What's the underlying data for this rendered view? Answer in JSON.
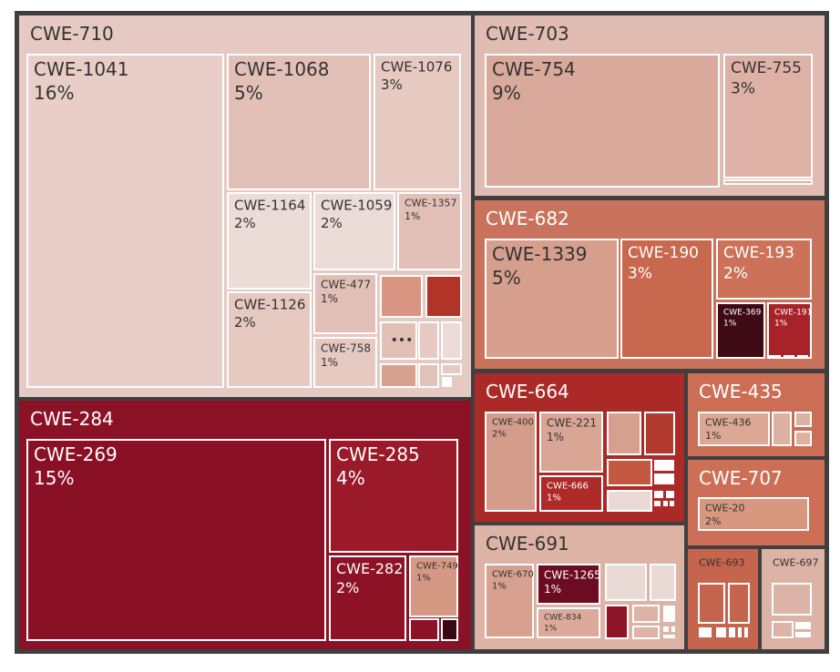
{
  "chart_data": {
    "type": "treemap",
    "colors": {
      "background": "#3f3f3f",
      "border": "#ffffff",
      "scale_light": "#e8d2cc",
      "scale_mid": "#cf6f55",
      "scale_dark": "#8b1024"
    },
    "more_indicator": "•••",
    "groups": [
      {
        "id": "CWE-710",
        "label": "CWE-710",
        "fill": "#e6c9c2",
        "text": "#333333",
        "children": [
          {
            "label": "CWE-1041",
            "percent": "16%",
            "fill": "#e8cec7"
          },
          {
            "label": "CWE-1068",
            "percent": "5%",
            "fill": "#e2c0b7"
          },
          {
            "label": "CWE-1076",
            "percent": "3%",
            "fill": "#e6c9c1"
          },
          {
            "label": "CWE-1164",
            "percent": "2%",
            "fill": "#ecdcd7"
          },
          {
            "label": "CWE-1059",
            "percent": "2%",
            "fill": "#ecdcd7"
          },
          {
            "label": "CWE-1357",
            "percent": "1%",
            "fill": "#e2c0b7"
          },
          {
            "label": "CWE-1126",
            "percent": "2%",
            "fill": "#e6c9c1"
          },
          {
            "label": "CWE-477",
            "percent": "1%",
            "fill": "#e2c0b7"
          },
          {
            "label": "CWE-758",
            "percent": "1%",
            "fill": "#e6c9c1"
          }
        ]
      },
      {
        "id": "CWE-703",
        "label": "CWE-703",
        "fill": "#e1bcb2",
        "text": "#333333",
        "children": [
          {
            "label": "CWE-754",
            "percent": "9%",
            "fill": "#d9a99b"
          },
          {
            "label": "CWE-755",
            "percent": "3%",
            "fill": "#ddb1a5"
          }
        ]
      },
      {
        "id": "CWE-682",
        "label": "CWE-682",
        "fill": "#c9735d",
        "text": "#ffffff",
        "children": [
          {
            "label": "CWE-1339",
            "percent": "5%",
            "fill": "#d59e8d"
          },
          {
            "label": "CWE-190",
            "percent": "3%",
            "fill": "#c8684f"
          },
          {
            "label": "CWE-193",
            "percent": "2%",
            "fill": "#cb7258"
          },
          {
            "label": "CWE-369",
            "percent": "1%",
            "fill": "#3e0a14"
          },
          {
            "label": "CWE-191",
            "percent": "1%",
            "fill": "#a8222a"
          }
        ]
      },
      {
        "id": "CWE-284",
        "label": "CWE-284",
        "fill": "#8b1226",
        "text": "#ffffff",
        "children": [
          {
            "label": "CWE-269",
            "percent": "15%",
            "fill": "#8a1026"
          },
          {
            "label": "CWE-285",
            "percent": "4%",
            "fill": "#9a1a29"
          },
          {
            "label": "CWE-282",
            "percent": "2%",
            "fill": "#8d1226"
          },
          {
            "label": "CWE-749",
            "percent": "1%",
            "fill": "#d59883"
          }
        ]
      },
      {
        "id": "CWE-664",
        "label": "CWE-664",
        "fill": "#ab2a27",
        "text": "#ffffff",
        "children": [
          {
            "label": "CWE-400",
            "percent": "2%",
            "fill": "#d49c8b"
          },
          {
            "label": "CWE-221",
            "percent": "1%",
            "fill": "#d9a594"
          },
          {
            "label": "CWE-666",
            "percent": "1%",
            "fill": "#ad2a28"
          }
        ]
      },
      {
        "id": "CWE-435",
        "label": "CWE-435",
        "fill": "#cc6e55",
        "text": "#ffffff",
        "children": [
          {
            "label": "CWE-436",
            "percent": "1%",
            "fill": "#dca794"
          }
        ]
      },
      {
        "id": "CWE-707",
        "label": "CWE-707",
        "fill": "#cc6f56",
        "text": "#ffffff",
        "children": [
          {
            "label": "CWE-20",
            "percent": "2%",
            "fill": "#d8987f"
          }
        ]
      },
      {
        "id": "CWE-691",
        "label": "CWE-691",
        "fill": "#ddb3a6",
        "text": "#333333",
        "children": [
          {
            "label": "CWE-670",
            "percent": "1%",
            "fill": "#d8a08f"
          },
          {
            "label": "CWE-1265",
            "percent": "1%",
            "fill": "#6b0c22"
          },
          {
            "label": "CWE-834",
            "percent": "1%",
            "fill": "#dcaa9b"
          }
        ]
      },
      {
        "id": "CWE-693",
        "label": "CWE-693",
        "fill": "#c6654e",
        "text": "#333333",
        "children": []
      },
      {
        "id": "CWE-697",
        "label": "CWE-697",
        "fill": "#dcb3a6",
        "text": "#333333",
        "children": []
      }
    ]
  }
}
